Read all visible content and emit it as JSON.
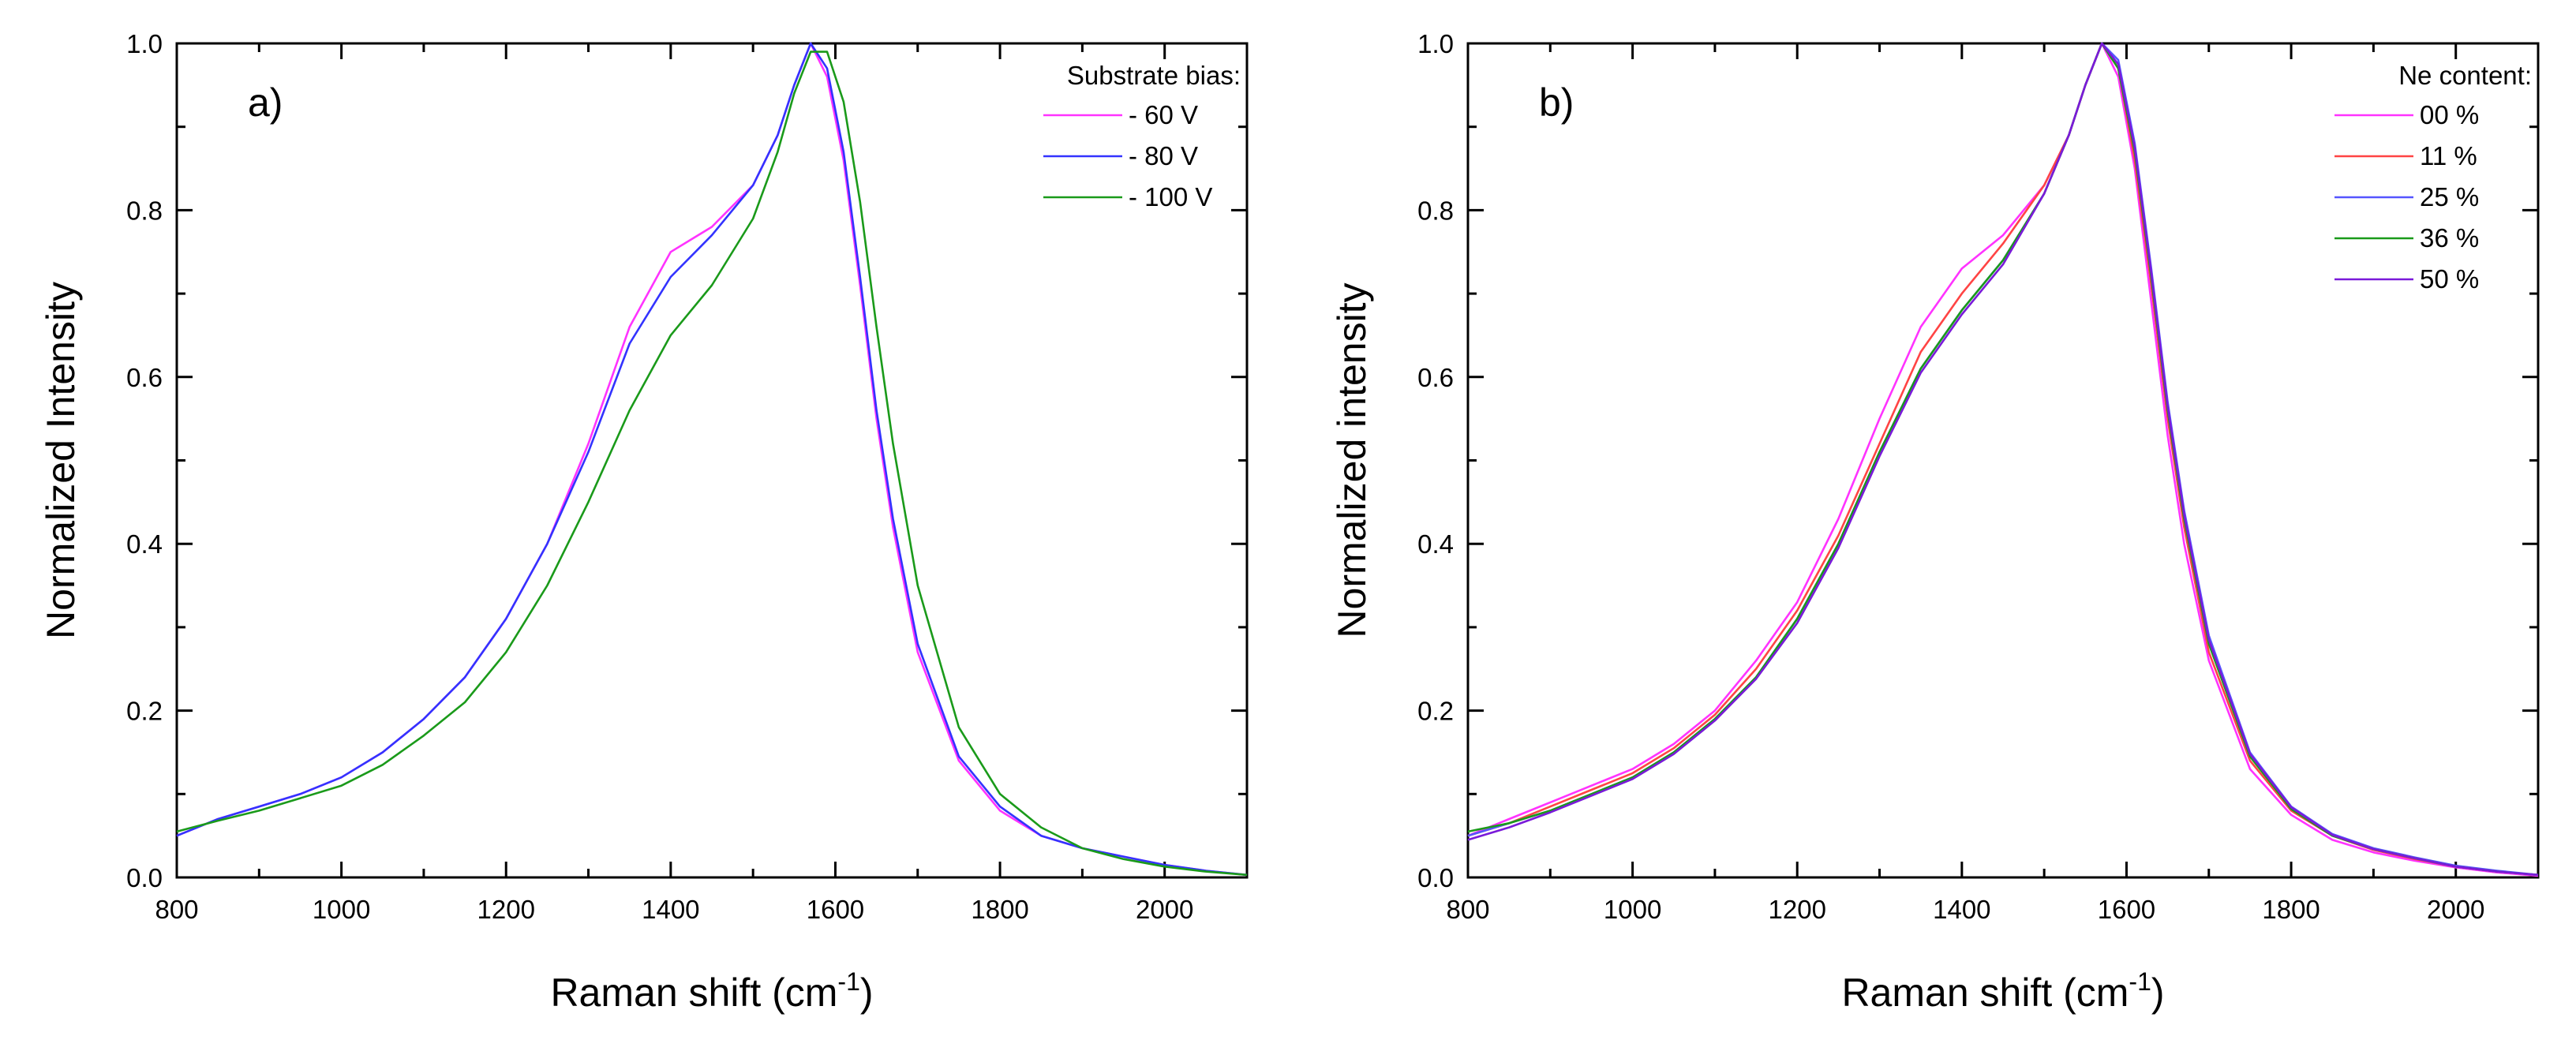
{
  "chart_data": [
    {
      "type": "line",
      "panel_label": "a)",
      "xlabel": "Raman shift (cm",
      "xlabel_sup": "-1",
      "xlabel_end": ")",
      "ylabel": "Normalized Intensity",
      "xlim": [
        800,
        2100
      ],
      "ylim": [
        0,
        1.0
      ],
      "x_ticks": [
        800,
        1000,
        1200,
        1400,
        1600,
        1800,
        2000
      ],
      "x_tick_labels": [
        "800",
        "1000",
        "1200",
        "1400",
        "1600",
        "1800",
        "2000"
      ],
      "y_ticks": [
        0.0,
        0.2,
        0.4,
        0.6,
        0.8,
        1.0
      ],
      "y_tick_labels": [
        "0.0",
        "0.2",
        "0.4",
        "0.6",
        "0.8",
        "1.0"
      ],
      "legend_title": "Substrate bias:",
      "legend_position": "top-right",
      "x": [
        800,
        850,
        900,
        950,
        1000,
        1050,
        1100,
        1150,
        1200,
        1250,
        1300,
        1350,
        1400,
        1450,
        1500,
        1530,
        1550,
        1570,
        1590,
        1610,
        1630,
        1650,
        1670,
        1700,
        1750,
        1800,
        1850,
        1900,
        1950,
        2000,
        2050,
        2100
      ],
      "series": [
        {
          "name": " - 60 V",
          "color": "#ff33ff",
          "values": [
            0.05,
            0.07,
            0.085,
            0.1,
            0.12,
            0.15,
            0.19,
            0.24,
            0.31,
            0.4,
            0.52,
            0.66,
            0.75,
            0.78,
            0.83,
            0.89,
            0.95,
            1.0,
            0.96,
            0.86,
            0.71,
            0.55,
            0.42,
            0.27,
            0.14,
            0.08,
            0.05,
            0.035,
            0.025,
            0.015,
            0.008,
            0.003
          ]
        },
        {
          "name": " - 80 V",
          "color": "#3333ff",
          "values": [
            0.05,
            0.07,
            0.085,
            0.1,
            0.12,
            0.15,
            0.19,
            0.24,
            0.31,
            0.4,
            0.51,
            0.64,
            0.72,
            0.77,
            0.83,
            0.89,
            0.95,
            1.0,
            0.97,
            0.87,
            0.72,
            0.56,
            0.43,
            0.28,
            0.145,
            0.085,
            0.05,
            0.035,
            0.025,
            0.015,
            0.008,
            0.003
          ]
        },
        {
          "name": "- 100 V",
          "color": "#1a9a1a",
          "values": [
            0.055,
            0.068,
            0.08,
            0.095,
            0.11,
            0.135,
            0.17,
            0.21,
            0.27,
            0.35,
            0.45,
            0.56,
            0.65,
            0.71,
            0.79,
            0.87,
            0.94,
            0.99,
            0.99,
            0.93,
            0.81,
            0.66,
            0.52,
            0.35,
            0.18,
            0.1,
            0.06,
            0.035,
            0.022,
            0.013,
            0.007,
            0.003
          ]
        }
      ]
    },
    {
      "type": "line",
      "panel_label": "b)",
      "xlabel": "Raman shift (cm",
      "xlabel_sup": "-1",
      "xlabel_end": ")",
      "ylabel": "Normalized intensity",
      "xlim": [
        800,
        2100
      ],
      "ylim": [
        0,
        1.0
      ],
      "x_ticks": [
        800,
        1000,
        1200,
        1400,
        1600,
        1800,
        2000
      ],
      "x_tick_labels": [
        "800",
        "1000",
        "1200",
        "1400",
        "1600",
        "1800",
        "2000"
      ],
      "y_ticks": [
        0.0,
        0.2,
        0.4,
        0.6,
        0.8,
        1.0
      ],
      "y_tick_labels": [
        "0.0",
        "0.2",
        "0.4",
        "0.6",
        "0.8",
        "1.0"
      ],
      "legend_title": "Ne content:",
      "legend_position": "top-right",
      "x": [
        800,
        850,
        900,
        950,
        1000,
        1050,
        1100,
        1150,
        1200,
        1250,
        1300,
        1350,
        1400,
        1450,
        1500,
        1530,
        1550,
        1570,
        1590,
        1610,
        1630,
        1650,
        1670,
        1700,
        1750,
        1800,
        1850,
        1900,
        1950,
        2000,
        2050,
        2100
      ],
      "series": [
        {
          "name": "00 %",
          "color": "#ff33ff",
          "values": [
            0.05,
            0.07,
            0.09,
            0.11,
            0.13,
            0.16,
            0.2,
            0.26,
            0.33,
            0.43,
            0.55,
            0.66,
            0.73,
            0.77,
            0.83,
            0.89,
            0.95,
            1.0,
            0.96,
            0.85,
            0.69,
            0.53,
            0.4,
            0.26,
            0.13,
            0.075,
            0.045,
            0.03,
            0.02,
            0.012,
            0.006,
            0.002
          ]
        },
        {
          "name": "11 %",
          "color": "#ff4444",
          "values": [
            0.05,
            0.065,
            0.085,
            0.105,
            0.125,
            0.155,
            0.195,
            0.25,
            0.32,
            0.41,
            0.52,
            0.63,
            0.7,
            0.76,
            0.83,
            0.89,
            0.95,
            1.0,
            0.97,
            0.86,
            0.71,
            0.55,
            0.42,
            0.27,
            0.14,
            0.08,
            0.05,
            0.033,
            0.022,
            0.013,
            0.007,
            0.003
          ]
        },
        {
          "name": "25 %",
          "color": "#5555ff",
          "values": [
            0.05,
            0.065,
            0.08,
            0.1,
            0.12,
            0.15,
            0.19,
            0.24,
            0.31,
            0.4,
            0.51,
            0.61,
            0.68,
            0.74,
            0.82,
            0.89,
            0.95,
            1.0,
            0.98,
            0.88,
            0.73,
            0.57,
            0.44,
            0.29,
            0.15,
            0.085,
            0.052,
            0.035,
            0.024,
            0.014,
            0.008,
            0.003
          ]
        },
        {
          "name": "36 %",
          "color": "#1a9a1a",
          "values": [
            0.055,
            0.065,
            0.08,
            0.1,
            0.12,
            0.15,
            0.19,
            0.24,
            0.31,
            0.4,
            0.51,
            0.61,
            0.68,
            0.74,
            0.82,
            0.89,
            0.95,
            1.0,
            0.97,
            0.87,
            0.72,
            0.56,
            0.43,
            0.28,
            0.145,
            0.082,
            0.05,
            0.034,
            0.023,
            0.013,
            0.007,
            0.003
          ]
        },
        {
          "name": "50 %",
          "color": "#7a1ad9",
          "values": [
            0.045,
            0.06,
            0.078,
            0.098,
            0.118,
            0.148,
            0.188,
            0.238,
            0.305,
            0.395,
            0.505,
            0.605,
            0.675,
            0.735,
            0.82,
            0.89,
            0.95,
            1.0,
            0.975,
            0.875,
            0.725,
            0.565,
            0.435,
            0.285,
            0.148,
            0.084,
            0.051,
            0.034,
            0.023,
            0.013,
            0.007,
            0.003
          ]
        }
      ]
    }
  ]
}
